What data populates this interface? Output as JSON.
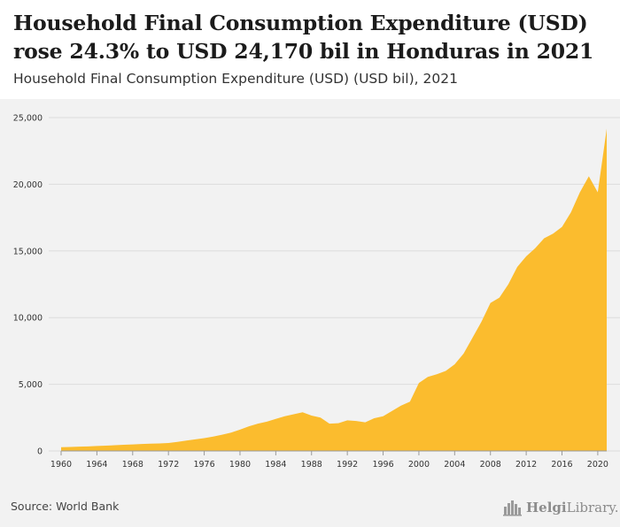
{
  "header": {
    "title": "Household Final Consumption Expenditure (USD) rose 24.3% to USD 24,170 bil in Honduras in 2021",
    "subtitle": "Household Final Consumption Expenditure (USD) (USD bil), 2021"
  },
  "footer": {
    "source": "Source: World Bank",
    "brand_name": "Helgi",
    "brand_suffix": "Library.",
    "brand_icon": "city-skyline-icon"
  },
  "colors": {
    "area": "#fbbc2e",
    "grid": "#dcdcdc",
    "plot_background": "#f2f2f2"
  },
  "chart_data": {
    "type": "area",
    "title": "",
    "xlabel": "",
    "ylabel": "",
    "x": [
      1960,
      1961,
      1962,
      1963,
      1964,
      1965,
      1966,
      1967,
      1968,
      1969,
      1970,
      1971,
      1972,
      1973,
      1974,
      1975,
      1976,
      1977,
      1978,
      1979,
      1980,
      1981,
      1982,
      1983,
      1984,
      1985,
      1986,
      1987,
      1988,
      1989,
      1990,
      1991,
      1992,
      1993,
      1994,
      1995,
      1996,
      1997,
      1998,
      1999,
      2000,
      2001,
      2002,
      2003,
      2004,
      2005,
      2006,
      2007,
      2008,
      2009,
      2010,
      2011,
      2012,
      2013,
      2014,
      2015,
      2016,
      2017,
      2018,
      2019,
      2020,
      2021
    ],
    "series": [
      {
        "values": [
          280,
          300,
          320,
          340,
          370,
          400,
          430,
          460,
          490,
          520,
          550,
          560,
          600,
          680,
          780,
          870,
          960,
          1080,
          1220,
          1380,
          1600,
          1850,
          2050,
          2200,
          2400,
          2600,
          2750,
          2900,
          2650,
          2500,
          2050,
          2080,
          2300,
          2250,
          2150,
          2450,
          2600,
          3000,
          3400,
          3700,
          5100,
          5550,
          5750,
          6000,
          6500,
          7300,
          8500,
          9700,
          11100,
          11500,
          12500,
          13800,
          14600,
          15200,
          15950,
          16300,
          16800,
          17900,
          19400,
          20600,
          19400,
          24170
        ]
      }
    ],
    "x_ticks": [
      "1960",
      "1964",
      "1968",
      "1972",
      "1976",
      "1980",
      "1984",
      "1988",
      "1992",
      "1996",
      "2000",
      "2004",
      "2008",
      "2012",
      "2016",
      "2020"
    ],
    "y_ticks": [
      "0",
      "5,000",
      "10,000",
      "15,000",
      "20,000",
      "25,000"
    ],
    "xlim": [
      1960,
      2021
    ],
    "ylim": [
      0,
      25000
    ],
    "grid": "horizontal",
    "legend": "none"
  }
}
